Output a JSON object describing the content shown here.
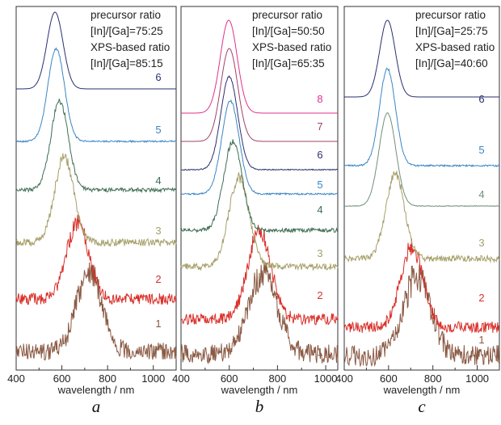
{
  "chart_data": [
    {
      "type": "line",
      "panel_label": "a",
      "xlabel": "wavelength / nm",
      "xlim": [
        400,
        1100
      ],
      "xticks": [
        400,
        600,
        800,
        1000
      ],
      "annotation": [
        "precursor ratio",
        "[In]/[Ga]=75:25",
        "XPS-based ratio",
        "[In]/[Ga]=85:15"
      ],
      "series": [
        {
          "name": "1",
          "color": "#8a5a44",
          "peak_nm": 720,
          "width_nm": 55,
          "noise": 0.55
        },
        {
          "name": "2",
          "color": "#d9302a",
          "peak_nm": 670,
          "width_nm": 48,
          "noise": 0.35
        },
        {
          "name": "3",
          "color": "#a6a06a",
          "peak_nm": 610,
          "width_nm": 42,
          "noise": 0.22
        },
        {
          "name": "4",
          "color": "#3f6e55",
          "peak_nm": 590,
          "width_nm": 38,
          "noise": 0.12
        },
        {
          "name": "5",
          "color": "#3a86c4",
          "peak_nm": 575,
          "width_nm": 36,
          "noise": 0.05
        },
        {
          "name": "6",
          "color": "#2a2f6e",
          "peak_nm": 570,
          "width_nm": 35,
          "noise": 0.0
        }
      ]
    },
    {
      "type": "line",
      "panel_label": "b",
      "xlabel": "wavelength / nm",
      "xlim": [
        400,
        1050
      ],
      "xticks": [
        400,
        600,
        800,
        1000
      ],
      "annotation": [
        "precursor ratio",
        "[In]/[Ga]=50:50",
        "XPS-based ratio",
        "[In]/[Ga]=65:35"
      ],
      "series": [
        {
          "name": "1",
          "color": "#8a5a44",
          "peak_nm": 740,
          "width_nm": 60,
          "noise": 0.6
        },
        {
          "name": "2",
          "color": "#d9302a",
          "peak_nm": 725,
          "width_nm": 48,
          "noise": 0.35
        },
        {
          "name": "3",
          "color": "#a6a06a",
          "peak_nm": 640,
          "width_nm": 42,
          "noise": 0.2
        },
        {
          "name": "4",
          "color": "#3f6e55",
          "peak_nm": 615,
          "width_nm": 38,
          "noise": 0.12
        },
        {
          "name": "5",
          "color": "#3a86c4",
          "peak_nm": 605,
          "width_nm": 36,
          "noise": 0.05
        },
        {
          "name": "6",
          "color": "#2a2f6e",
          "peak_nm": 600,
          "width_nm": 35,
          "noise": 0.03
        },
        {
          "name": "7",
          "color": "#a0406a",
          "peak_nm": 600,
          "width_nm": 35,
          "noise": 0.0
        },
        {
          "name": "8",
          "color": "#e0308a",
          "peak_nm": 598,
          "width_nm": 35,
          "noise": 0.0
        }
      ]
    },
    {
      "type": "line",
      "panel_label": "c",
      "xlabel": "wavelength / nm",
      "xlim": [
        400,
        1100
      ],
      "xticks": [
        400,
        600,
        800,
        1000
      ],
      "annotation": [
        "precursor ratio",
        "[In]/[Ga]=25:75",
        "XPS-based ratio",
        "[In]/[Ga]=40:60"
      ],
      "series": [
        {
          "name": "1",
          "color": "#8a5a44",
          "peak_nm": 730,
          "width_nm": 60,
          "noise": 0.65
        },
        {
          "name": "2",
          "color": "#d9302a",
          "peak_nm": 705,
          "width_nm": 50,
          "noise": 0.35
        },
        {
          "name": "3",
          "color": "#a6a06a",
          "peak_nm": 630,
          "width_nm": 42,
          "noise": 0.2
        },
        {
          "name": "4",
          "color": "#6f8f7a",
          "peak_nm": 595,
          "width_nm": 38,
          "noise": 0.02
        },
        {
          "name": "5",
          "color": "#3a86c4",
          "peak_nm": 595,
          "width_nm": 36,
          "noise": 0.05
        },
        {
          "name": "6",
          "color": "#2a2f6e",
          "peak_nm": 595,
          "width_nm": 35,
          "noise": 0.0
        }
      ]
    }
  ]
}
